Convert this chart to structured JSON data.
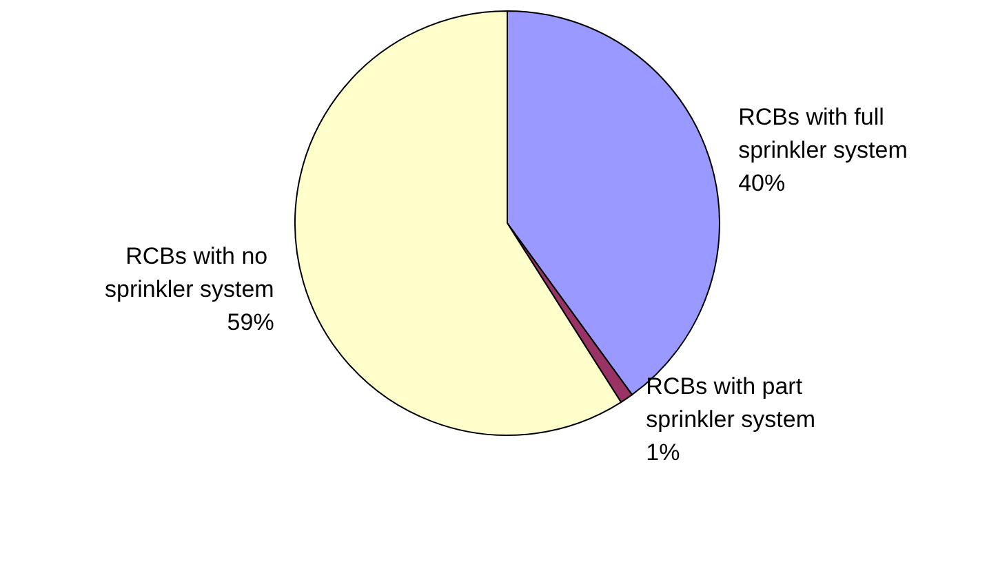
{
  "chart_data": {
    "type": "pie",
    "categories": [
      "RCBs with full sprinkler system",
      "RCBs with part sprinkler system",
      "RCBs with no sprinkler system"
    ],
    "values": [
      40,
      1,
      59
    ],
    "value_labels": [
      "40%",
      "1%",
      "59%"
    ],
    "colors": [
      "#9999ff",
      "#993366",
      "#ffffcc"
    ],
    "legend": false
  }
}
